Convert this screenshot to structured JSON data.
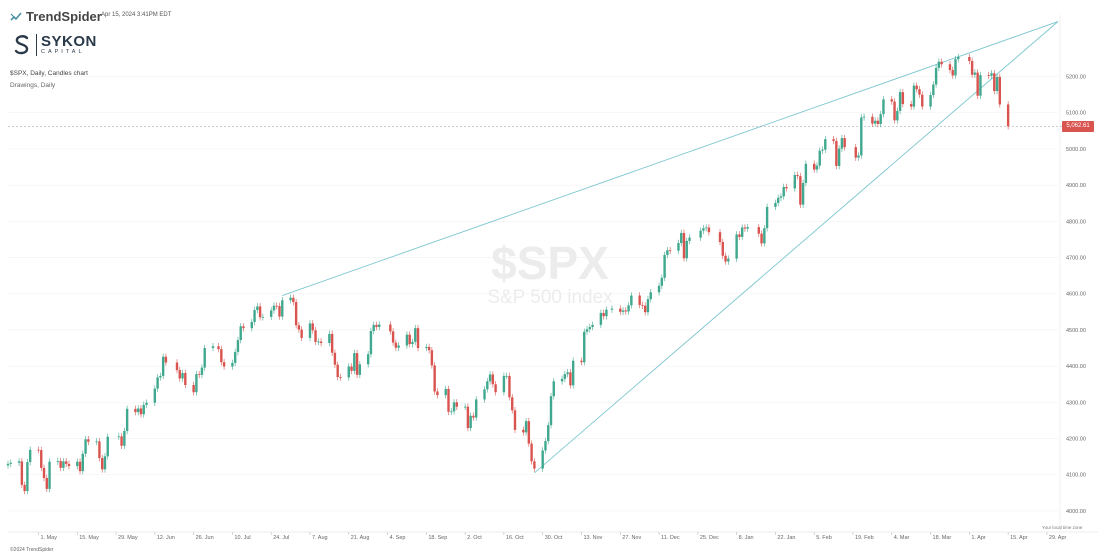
{
  "header": {
    "brand": "TrendSpider",
    "datestamp": "Apr 15, 2024 3:41PM EDT",
    "logo_name": "SYKON",
    "logo_sub": "CAPITAL",
    "symbol_line": "$SPX, Daily, Candles chart",
    "drawings_line": "Drawings, Daily",
    "watermark_symbol": "$SPX",
    "watermark_name": "S&P 500 index",
    "timezone_note": "Your local time zone",
    "copyright": "©2024 TrendSpider"
  },
  "colors": {
    "up": "#3fa88e",
    "down": "#d9534f",
    "trendline": "#7cc6cf",
    "grid": "#f2f2f2",
    "last_price_bg": "#d9534f"
  },
  "icons": {
    "brand": "trendspider-logo-icon",
    "logo": "sykon-s-mark-icon"
  },
  "last_price": {
    "value": 5062.61,
    "label": "5,062.61"
  },
  "chart_data": {
    "type": "candlestick",
    "title": "$SPX",
    "subtitle": "S&P 500 index",
    "ylim": [
      3975,
      5370
    ],
    "y_ticks": [
      4000,
      4100,
      4200,
      4300,
      4400,
      4500,
      4600,
      4700,
      4800,
      4900,
      5000,
      5100,
      5200
    ],
    "y_tick_labels": [
      "4000.00",
      "4100.00",
      "4200.00",
      "4300.00",
      "4400.00",
      "4500.00",
      "4600.00",
      "4700.00",
      "4800.00",
      "4900.00",
      "5000.00",
      "5100.00",
      "5200.00"
    ],
    "x_start": "2023-04-20",
    "x_end": "2024-05-03",
    "x_ticks": [
      {
        "date": "2023-05-01",
        "label": "1. May"
      },
      {
        "date": "2023-05-15",
        "label": "15. May"
      },
      {
        "date": "2023-05-29",
        "label": "29. May"
      },
      {
        "date": "2023-06-12",
        "label": "12. Jun"
      },
      {
        "date": "2023-06-26",
        "label": "26. Jun"
      },
      {
        "date": "2023-07-10",
        "label": "10. Jul"
      },
      {
        "date": "2023-07-24",
        "label": "24. Jul"
      },
      {
        "date": "2023-08-07",
        "label": "7. Aug"
      },
      {
        "date": "2023-08-21",
        "label": "21. Aug"
      },
      {
        "date": "2023-09-04",
        "label": "4. Sep"
      },
      {
        "date": "2023-09-18",
        "label": "18. Sep"
      },
      {
        "date": "2023-10-02",
        "label": "2. Oct"
      },
      {
        "date": "2023-10-16",
        "label": "16. Oct"
      },
      {
        "date": "2023-10-30",
        "label": "30. Oct"
      },
      {
        "date": "2023-11-13",
        "label": "13. Nov"
      },
      {
        "date": "2023-11-27",
        "label": "27. Nov"
      },
      {
        "date": "2023-12-11",
        "label": "11. Dec"
      },
      {
        "date": "2023-12-25",
        "label": "25. Dec"
      },
      {
        "date": "2024-01-08",
        "label": "8. Jan"
      },
      {
        "date": "2024-01-22",
        "label": "22. Jan"
      },
      {
        "date": "2024-02-05",
        "label": "5. Feb"
      },
      {
        "date": "2024-02-19",
        "label": "19. Feb"
      },
      {
        "date": "2024-03-04",
        "label": "4. Mar"
      },
      {
        "date": "2024-03-18",
        "label": "18. Mar"
      },
      {
        "date": "2024-04-01",
        "label": "1. Apr"
      },
      {
        "date": "2024-04-15",
        "label": "15. Apr"
      },
      {
        "date": "2024-04-29",
        "label": "29. Apr"
      }
    ],
    "closes": [
      [
        "2023-04-20",
        4130
      ],
      [
        "2023-04-21",
        4133
      ],
      [
        "2023-04-24",
        4137
      ],
      [
        "2023-04-25",
        4072
      ],
      [
        "2023-04-26",
        4055
      ],
      [
        "2023-04-27",
        4135
      ],
      [
        "2023-04-28",
        4169
      ],
      [
        "2023-05-01",
        4168
      ],
      [
        "2023-05-02",
        4119
      ],
      [
        "2023-05-03",
        4091
      ],
      [
        "2023-05-04",
        4061
      ],
      [
        "2023-05-05",
        4136
      ],
      [
        "2023-05-08",
        4138
      ],
      [
        "2023-05-09",
        4119
      ],
      [
        "2023-05-10",
        4137
      ],
      [
        "2023-05-11",
        4130
      ],
      [
        "2023-05-12",
        4124
      ],
      [
        "2023-05-15",
        4136
      ],
      [
        "2023-05-16",
        4110
      ],
      [
        "2023-05-17",
        4158
      ],
      [
        "2023-05-18",
        4198
      ],
      [
        "2023-05-19",
        4191
      ],
      [
        "2023-05-22",
        4192
      ],
      [
        "2023-05-23",
        4146
      ],
      [
        "2023-05-24",
        4115
      ],
      [
        "2023-05-25",
        4151
      ],
      [
        "2023-05-26",
        4205
      ],
      [
        "2023-05-30",
        4206
      ],
      [
        "2023-05-31",
        4180
      ],
      [
        "2023-06-01",
        4221
      ],
      [
        "2023-06-02",
        4282
      ],
      [
        "2023-06-05",
        4273
      ],
      [
        "2023-06-06",
        4283
      ],
      [
        "2023-06-07",
        4267
      ],
      [
        "2023-06-08",
        4293
      ],
      [
        "2023-06-09",
        4299
      ],
      [
        "2023-06-12",
        4338
      ],
      [
        "2023-06-13",
        4369
      ],
      [
        "2023-06-14",
        4373
      ],
      [
        "2023-06-15",
        4426
      ],
      [
        "2023-06-16",
        4410
      ],
      [
        "2023-06-20",
        4389
      ],
      [
        "2023-06-21",
        4366
      ],
      [
        "2023-06-22",
        4381
      ],
      [
        "2023-06-23",
        4348
      ],
      [
        "2023-06-26",
        4328
      ],
      [
        "2023-06-27",
        4378
      ],
      [
        "2023-06-28",
        4376
      ],
      [
        "2023-06-29",
        4396
      ],
      [
        "2023-06-30",
        4450
      ],
      [
        "2023-07-03",
        4455
      ],
      [
        "2023-07-05",
        4447
      ],
      [
        "2023-07-06",
        4411
      ],
      [
        "2023-07-07",
        4399
      ],
      [
        "2023-07-10",
        4409
      ],
      [
        "2023-07-11",
        4439
      ],
      [
        "2023-07-12",
        4472
      ],
      [
        "2023-07-13",
        4510
      ],
      [
        "2023-07-14",
        4505
      ],
      [
        "2023-07-17",
        4522
      ],
      [
        "2023-07-18",
        4555
      ],
      [
        "2023-07-19",
        4565
      ],
      [
        "2023-07-20",
        4535
      ],
      [
        "2023-07-21",
        4536
      ],
      [
        "2023-07-24",
        4554
      ],
      [
        "2023-07-25",
        4567
      ],
      [
        "2023-07-26",
        4566
      ],
      [
        "2023-07-27",
        4537
      ],
      [
        "2023-07-28",
        4582
      ],
      [
        "2023-07-31",
        4589
      ],
      [
        "2023-08-01",
        4577
      ],
      [
        "2023-08-02",
        4513
      ],
      [
        "2023-08-03",
        4501
      ],
      [
        "2023-08-04",
        4478
      ],
      [
        "2023-08-07",
        4518
      ],
      [
        "2023-08-08",
        4499
      ],
      [
        "2023-08-09",
        4467
      ],
      [
        "2023-08-10",
        4468
      ],
      [
        "2023-08-11",
        4464
      ],
      [
        "2023-08-14",
        4489
      ],
      [
        "2023-08-15",
        4437
      ],
      [
        "2023-08-16",
        4404
      ],
      [
        "2023-08-17",
        4370
      ],
      [
        "2023-08-18",
        4369
      ],
      [
        "2023-08-21",
        4399
      ],
      [
        "2023-08-22",
        4387
      ],
      [
        "2023-08-23",
        4436
      ],
      [
        "2023-08-24",
        4376
      ],
      [
        "2023-08-25",
        4405
      ],
      [
        "2023-08-28",
        4433
      ],
      [
        "2023-08-29",
        4497
      ],
      [
        "2023-08-30",
        4514
      ],
      [
        "2023-08-31",
        4508
      ],
      [
        "2023-09-01",
        4515
      ],
      [
        "2023-09-05",
        4496
      ],
      [
        "2023-09-06",
        4465
      ],
      [
        "2023-09-07",
        4451
      ],
      [
        "2023-09-08",
        4457
      ],
      [
        "2023-09-11",
        4487
      ],
      [
        "2023-09-12",
        4461
      ],
      [
        "2023-09-13",
        4467
      ],
      [
        "2023-09-14",
        4505
      ],
      [
        "2023-09-15",
        4450
      ],
      [
        "2023-09-18",
        4453
      ],
      [
        "2023-09-19",
        4444
      ],
      [
        "2023-09-20",
        4402
      ],
      [
        "2023-09-21",
        4330
      ],
      [
        "2023-09-22",
        4320
      ],
      [
        "2023-09-25",
        4337
      ],
      [
        "2023-09-26",
        4274
      ],
      [
        "2023-09-27",
        4275
      ],
      [
        "2023-09-28",
        4300
      ],
      [
        "2023-09-29",
        4288
      ],
      [
        "2023-10-02",
        4288
      ],
      [
        "2023-10-03",
        4229
      ],
      [
        "2023-10-04",
        4263
      ],
      [
        "2023-10-05",
        4258
      ],
      [
        "2023-10-06",
        4308
      ],
      [
        "2023-10-09",
        4336
      ],
      [
        "2023-10-10",
        4358
      ],
      [
        "2023-10-11",
        4377
      ],
      [
        "2023-10-12",
        4350
      ],
      [
        "2023-10-13",
        4328
      ],
      [
        "2023-10-16",
        4373
      ],
      [
        "2023-10-17",
        4373
      ],
      [
        "2023-10-18",
        4314
      ],
      [
        "2023-10-19",
        4278
      ],
      [
        "2023-10-20",
        4224
      ],
      [
        "2023-10-23",
        4217
      ],
      [
        "2023-10-24",
        4248
      ],
      [
        "2023-10-25",
        4186
      ],
      [
        "2023-10-26",
        4137
      ],
      [
        "2023-10-27",
        4117
      ],
      [
        "2023-10-30",
        4167
      ],
      [
        "2023-10-31",
        4193
      ],
      [
        "2023-11-01",
        4237
      ],
      [
        "2023-11-02",
        4317
      ],
      [
        "2023-11-03",
        4358
      ],
      [
        "2023-11-06",
        4365
      ],
      [
        "2023-11-07",
        4378
      ],
      [
        "2023-11-08",
        4383
      ],
      [
        "2023-11-09",
        4347
      ],
      [
        "2023-11-10",
        4415
      ],
      [
        "2023-11-13",
        4411
      ],
      [
        "2023-11-14",
        4495
      ],
      [
        "2023-11-15",
        4502
      ],
      [
        "2023-11-16",
        4508
      ],
      [
        "2023-11-17",
        4514
      ],
      [
        "2023-11-20",
        4547
      ],
      [
        "2023-11-21",
        4538
      ],
      [
        "2023-11-22",
        4556
      ],
      [
        "2023-11-24",
        4559
      ],
      [
        "2023-11-27",
        4550
      ],
      [
        "2023-11-28",
        4554
      ],
      [
        "2023-11-29",
        4551
      ],
      [
        "2023-11-30",
        4568
      ],
      [
        "2023-12-01",
        4595
      ],
      [
        "2023-12-04",
        4569
      ],
      [
        "2023-12-05",
        4567
      ],
      [
        "2023-12-06",
        4549
      ],
      [
        "2023-12-07",
        4585
      ],
      [
        "2023-12-08",
        4604
      ],
      [
        "2023-12-11",
        4622
      ],
      [
        "2023-12-12",
        4644
      ],
      [
        "2023-12-13",
        4707
      ],
      [
        "2023-12-14",
        4720
      ],
      [
        "2023-12-15",
        4719
      ],
      [
        "2023-12-18",
        4740
      ],
      [
        "2023-12-19",
        4768
      ],
      [
        "2023-12-20",
        4698
      ],
      [
        "2023-12-21",
        4746
      ],
      [
        "2023-12-22",
        4755
      ],
      [
        "2023-12-26",
        4774
      ],
      [
        "2023-12-27",
        4781
      ],
      [
        "2023-12-28",
        4783
      ],
      [
        "2023-12-29",
        4770
      ],
      [
        "2024-01-02",
        4743
      ],
      [
        "2024-01-03",
        4705
      ],
      [
        "2024-01-04",
        4689
      ],
      [
        "2024-01-05",
        4697
      ],
      [
        "2024-01-08",
        4764
      ],
      [
        "2024-01-09",
        4757
      ],
      [
        "2024-01-10",
        4783
      ],
      [
        "2024-01-11",
        4780
      ],
      [
        "2024-01-12",
        4784
      ],
      [
        "2024-01-16",
        4766
      ],
      [
        "2024-01-17",
        4739
      ],
      [
        "2024-01-18",
        4781
      ],
      [
        "2024-01-19",
        4840
      ],
      [
        "2024-01-22",
        4851
      ],
      [
        "2024-01-23",
        4865
      ],
      [
        "2024-01-24",
        4869
      ],
      [
        "2024-01-25",
        4895
      ],
      [
        "2024-01-26",
        4891
      ],
      [
        "2024-01-29",
        4928
      ],
      [
        "2024-01-30",
        4925
      ],
      [
        "2024-01-31",
        4846
      ],
      [
        "2024-02-01",
        4906
      ],
      [
        "2024-02-02",
        4959
      ],
      [
        "2024-02-05",
        4943
      ],
      [
        "2024-02-06",
        4954
      ],
      [
        "2024-02-07",
        4995
      ],
      [
        "2024-02-08",
        4998
      ],
      [
        "2024-02-09",
        5027
      ],
      [
        "2024-02-12",
        5022
      ],
      [
        "2024-02-13",
        4953
      ],
      [
        "2024-02-14",
        5001
      ],
      [
        "2024-02-15",
        5030
      ],
      [
        "2024-02-16",
        5005
      ],
      [
        "2024-02-20",
        4976
      ],
      [
        "2024-02-21",
        4982
      ],
      [
        "2024-02-22",
        5087
      ],
      [
        "2024-02-23",
        5089
      ],
      [
        "2024-02-26",
        5070
      ],
      [
        "2024-02-27",
        5078
      ],
      [
        "2024-02-28",
        5069
      ],
      [
        "2024-02-29",
        5096
      ],
      [
        "2024-03-01",
        5137
      ],
      [
        "2024-03-04",
        5131
      ],
      [
        "2024-03-05",
        5079
      ],
      [
        "2024-03-06",
        5105
      ],
      [
        "2024-03-07",
        5157
      ],
      [
        "2024-03-08",
        5124
      ],
      [
        "2024-03-11",
        5117
      ],
      [
        "2024-03-12",
        5175
      ],
      [
        "2024-03-13",
        5165
      ],
      [
        "2024-03-14",
        5150
      ],
      [
        "2024-03-15",
        5117
      ],
      [
        "2024-03-18",
        5149
      ],
      [
        "2024-03-19",
        5178
      ],
      [
        "2024-03-20",
        5224
      ],
      [
        "2024-03-21",
        5241
      ],
      [
        "2024-03-22",
        5234
      ],
      [
        "2024-03-25",
        5218
      ],
      [
        "2024-03-26",
        5203
      ],
      [
        "2024-03-27",
        5248
      ],
      [
        "2024-03-28",
        5254
      ],
      [
        "2024-04-01",
        5243
      ],
      [
        "2024-04-02",
        5205
      ],
      [
        "2024-04-03",
        5211
      ],
      [
        "2024-04-04",
        5147
      ],
      [
        "2024-04-05",
        5204
      ],
      [
        "2024-04-08",
        5202
      ],
      [
        "2024-04-09",
        5209
      ],
      [
        "2024-04-10",
        5160
      ],
      [
        "2024-04-11",
        5199
      ],
      [
        "2024-04-12",
        5123
      ],
      [
        "2024-04-15",
        5062.61
      ]
    ],
    "trendlines": [
      {
        "from": {
          "date": "2023-07-28",
          "price": 4595
        },
        "to": {
          "date": "2024-05-03",
          "price": 5352
        }
      },
      {
        "from": {
          "date": "2023-10-27",
          "price": 4105
        },
        "to": {
          "date": "2024-05-03",
          "price": 5352
        }
      }
    ],
    "last_price_line": 5062.61,
    "legend": "none",
    "grid": true
  }
}
